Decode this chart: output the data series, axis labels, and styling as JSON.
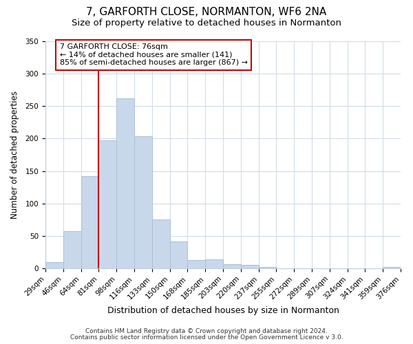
{
  "title": "7, GARFORTH CLOSE, NORMANTON, WF6 2NA",
  "subtitle": "Size of property relative to detached houses in Normanton",
  "xlabel": "Distribution of detached houses by size in Normanton",
  "ylabel": "Number of detached properties",
  "bar_color": "#c8d8ea",
  "bar_edge_color": "#a8c0d8",
  "bins": [
    "29sqm",
    "46sqm",
    "64sqm",
    "81sqm",
    "98sqm",
    "116sqm",
    "133sqm",
    "150sqm",
    "168sqm",
    "185sqm",
    "203sqm",
    "220sqm",
    "237sqm",
    "255sqm",
    "272sqm",
    "289sqm",
    "307sqm",
    "324sqm",
    "341sqm",
    "359sqm",
    "376sqm"
  ],
  "values": [
    10,
    57,
    142,
    197,
    262,
    204,
    75,
    41,
    13,
    14,
    6,
    5,
    2,
    0,
    0,
    0,
    0,
    0,
    0,
    2
  ],
  "ylim": [
    0,
    350
  ],
  "yticks": [
    0,
    50,
    100,
    150,
    200,
    250,
    300,
    350
  ],
  "vline_pos": 3.0,
  "vline_color": "#cc0000",
  "annotation_text": "7 GARFORTH CLOSE: 76sqm\n← 14% of detached houses are smaller (141)\n85% of semi-detached houses are larger (867) →",
  "annotation_box_edge": "#cc0000",
  "footer1": "Contains HM Land Registry data © Crown copyright and database right 2024.",
  "footer2": "Contains public sector information licensed under the Open Government Licence v 3.0.",
  "bg_color": "#ffffff",
  "grid_color": "#d0dce8",
  "title_fontsize": 11,
  "subtitle_fontsize": 9.5,
  "xlabel_fontsize": 9,
  "ylabel_fontsize": 8.5,
  "tick_fontsize": 7.5,
  "footer_fontsize": 6.5,
  "ann_fontsize": 8
}
